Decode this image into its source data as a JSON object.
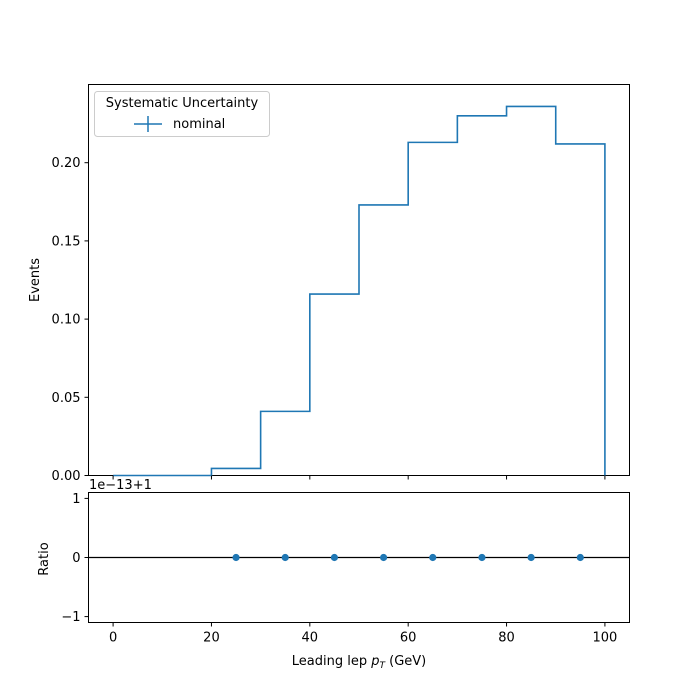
{
  "chart_data": {
    "type": "step",
    "top_panel": {
      "series": [
        {
          "name": "nominal",
          "color": "#1f77b4",
          "bin_edges": [
            0,
            10,
            20,
            30,
            40,
            50,
            60,
            70,
            80,
            90,
            100
          ],
          "values": [
            0.0,
            0.0,
            0.0045,
            0.041,
            0.116,
            0.173,
            0.213,
            0.23,
            0.236,
            0.212
          ]
        }
      ],
      "ylabel": "Events",
      "ylim": [
        0,
        0.25
      ],
      "yticks": [
        0.0,
        0.05,
        0.1,
        0.15,
        0.2
      ],
      "ytick_labels": [
        "0.00",
        "0.05",
        "0.10",
        "0.15",
        "0.20"
      ],
      "legend": {
        "title": "Systematic Uncertainty",
        "entries": [
          "nominal"
        ],
        "placement": "top-left"
      }
    },
    "ratio_panel": {
      "type": "scatter",
      "ylabel": "Ratio",
      "offset_label": "1e−13+1",
      "reference_line": 0,
      "x": [
        25,
        35,
        45,
        55,
        65,
        75,
        85,
        95
      ],
      "y": [
        0,
        0,
        0,
        0,
        0,
        0,
        0,
        0
      ],
      "ylim": [
        -1.1,
        1.1
      ],
      "yticks": [
        -1,
        0,
        1
      ],
      "ytick_labels": [
        "−1",
        "0",
        "1"
      ],
      "marker_color": "#1f77b4"
    },
    "xlabel_prefix": "Leading lep ",
    "xlabel_symbol": "p",
    "xlabel_subscript": "T",
    "xlabel_suffix": " (GeV)",
    "xlim": [
      -5,
      105
    ],
    "xticks": [
      0,
      20,
      40,
      60,
      80,
      100
    ],
    "xtick_labels": [
      "0",
      "20",
      "40",
      "60",
      "80",
      "100"
    ]
  }
}
